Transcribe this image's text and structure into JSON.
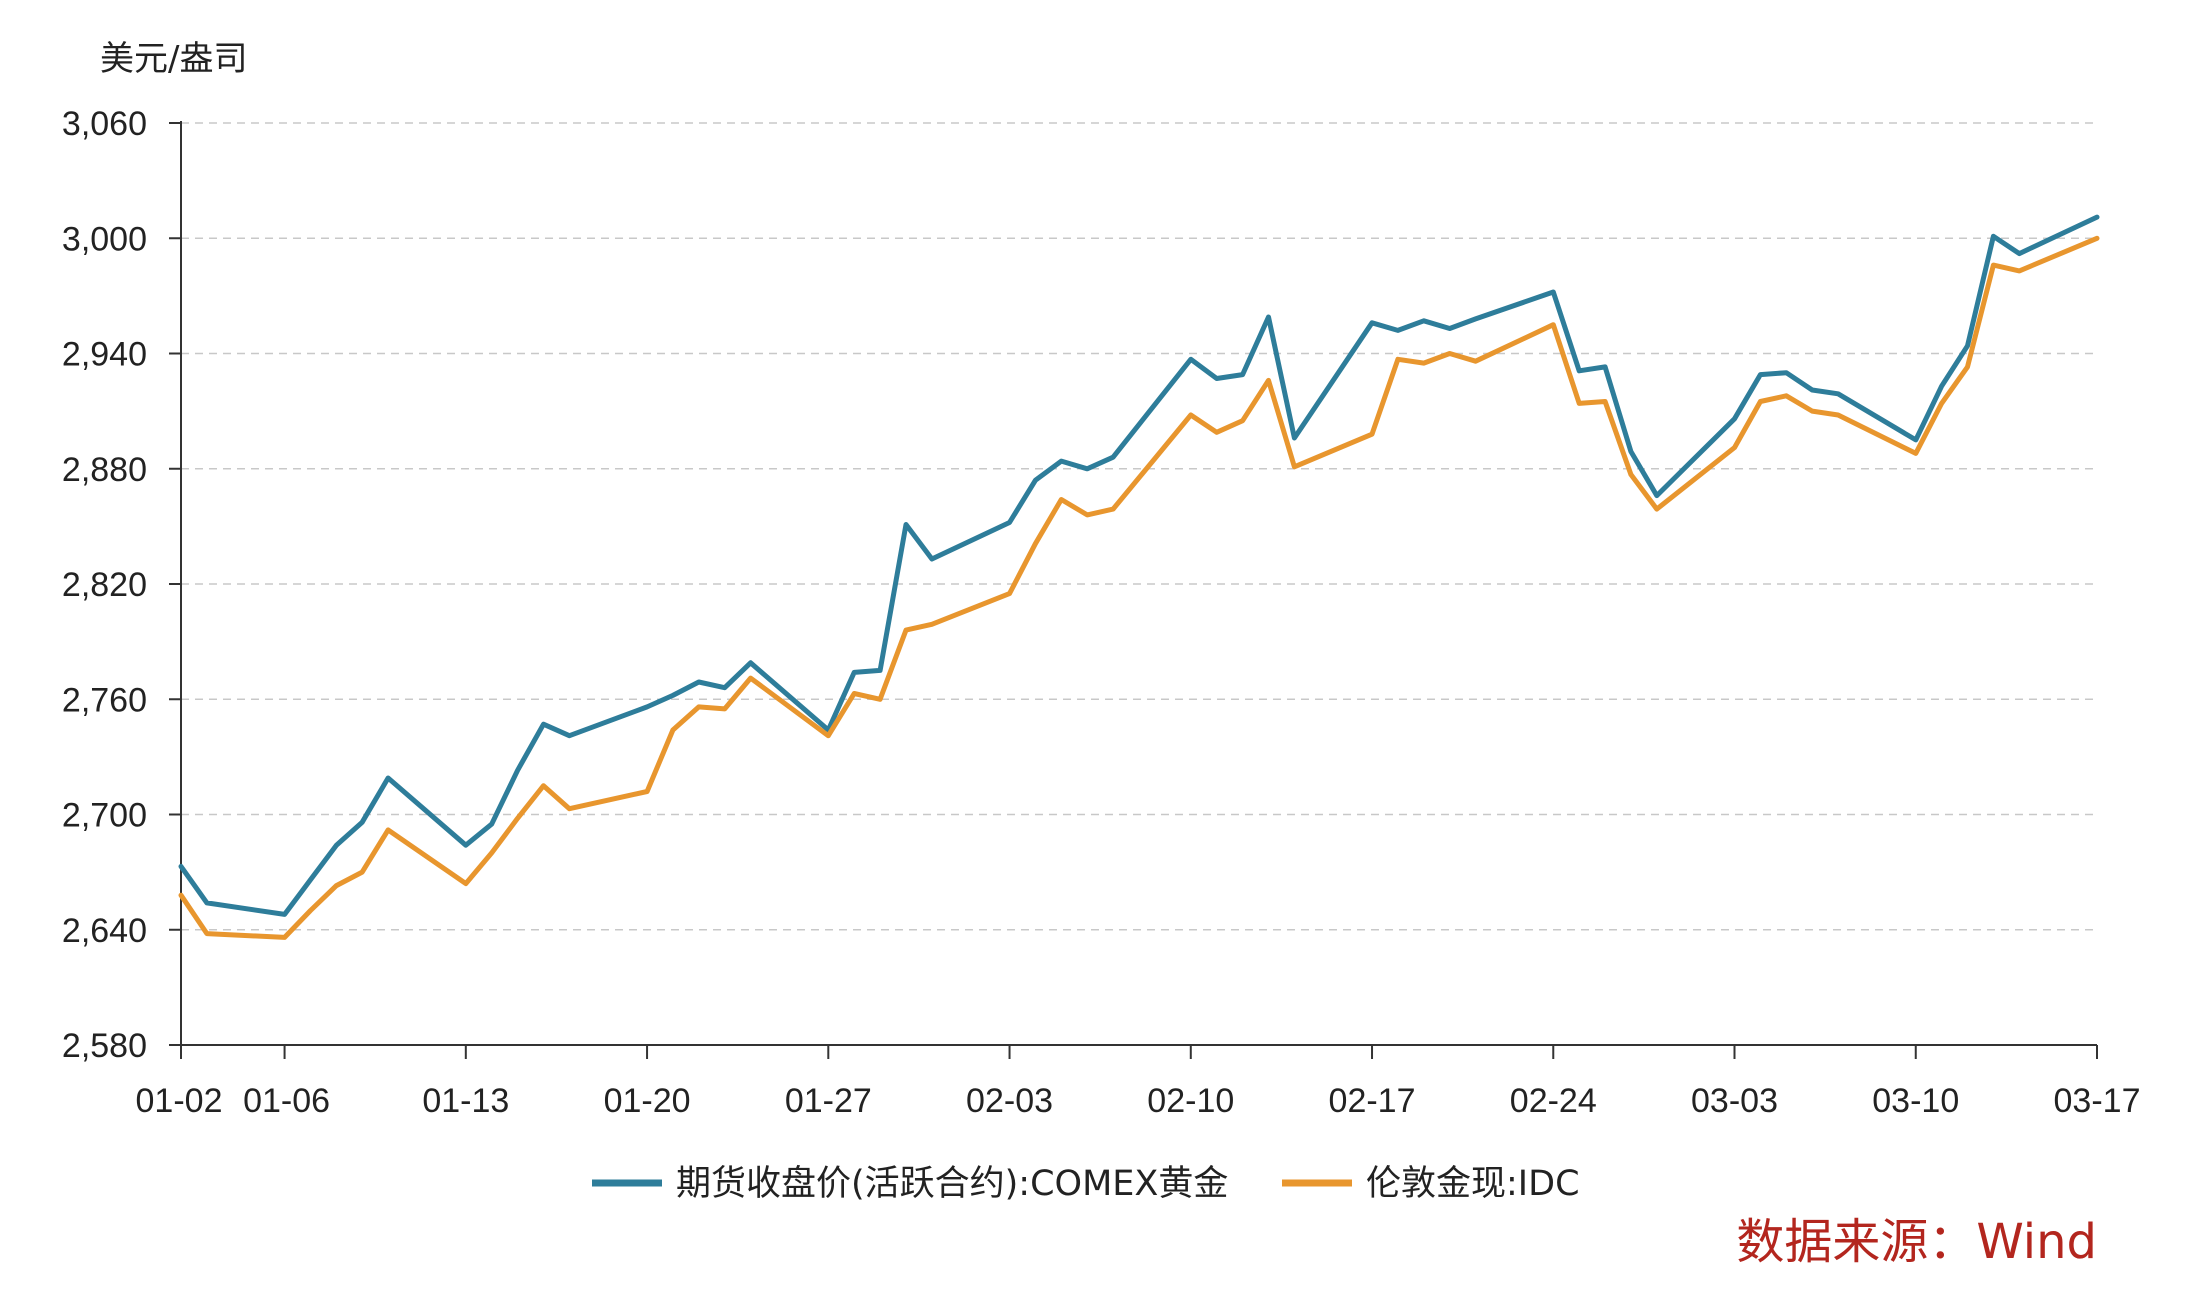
{
  "chart_data": {
    "type": "line",
    "ylabel": "美元/盎司",
    "ylim": [
      2580,
      3060
    ],
    "y_ticks": [
      "2,580",
      "2,640",
      "2,700",
      "2,760",
      "2,820",
      "2,880",
      "2,940",
      "3,000",
      "3,060"
    ],
    "y_tick_values": [
      2580,
      2640,
      2700,
      2760,
      2820,
      2880,
      2940,
      3000,
      3060
    ],
    "x_ticks": [
      "01-02",
      "01-06",
      "01-13",
      "01-20",
      "01-27",
      "02-03",
      "02-10",
      "02-17",
      "02-24",
      "03-03",
      "03-10",
      "03-17"
    ],
    "x_tick_index": [
      0,
      4,
      11,
      18,
      25,
      32,
      39,
      46,
      53,
      60,
      67,
      74
    ],
    "grid": "horizontal-dashed",
    "legend": "bottom-center",
    "x": [
      0,
      1,
      4,
      5,
      6,
      7,
      8,
      11,
      12,
      13,
      14,
      15,
      18,
      19,
      20,
      21,
      22,
      25,
      26,
      27,
      28,
      29,
      32,
      33,
      34,
      35,
      36,
      39,
      40,
      41,
      42,
      43,
      46,
      47,
      48,
      49,
      50,
      53,
      54,
      55,
      56,
      57,
      60,
      61,
      62,
      63,
      64,
      67,
      68,
      69,
      70,
      71,
      74
    ],
    "dates": [
      "01-02",
      "01-03",
      "01-06",
      "01-07",
      "01-08",
      "01-09",
      "01-10",
      "01-13",
      "01-14",
      "01-15",
      "01-16",
      "01-17",
      "01-20",
      "01-21",
      "01-22",
      "01-23",
      "01-24",
      "01-27",
      "01-28",
      "01-29",
      "01-30",
      "01-31",
      "02-03",
      "02-04",
      "02-05",
      "02-06",
      "02-07",
      "02-10",
      "02-11",
      "02-12",
      "02-13",
      "02-14",
      "02-17",
      "02-18",
      "02-19",
      "02-20",
      "02-21",
      "02-24",
      "02-25",
      "02-26",
      "02-27",
      "02-28",
      "03-03",
      "03-04",
      "03-05",
      "03-06",
      "03-07",
      "03-10",
      "03-11",
      "03-12",
      "03-13",
      "03-14",
      "03-17"
    ],
    "series": [
      {
        "name": "期货收盘价(活跃合约):COMEX黄金",
        "color": "#2e7d9a",
        "values": [
          2673,
          2654,
          2648,
          2666,
          2684,
          2696,
          2719,
          2684,
          2695,
          2723,
          2747,
          2741,
          2756,
          2762,
          2769,
          2766,
          2779,
          2744,
          2774,
          2775,
          2851,
          2833,
          2852,
          2874,
          2884,
          2880,
          2886,
          2937,
          2927,
          2929,
          2959,
          2896,
          2956,
          2952,
          2957,
          2953,
          2958,
          2972,
          2931,
          2933,
          2889,
          2866,
          2906,
          2929,
          2930,
          2921,
          2919,
          2895,
          2923,
          2944,
          3001,
          2992,
          3011
        ]
      },
      {
        "name": "伦敦金现:IDC",
        "color": "#e8962e",
        "values": [
          2658,
          2638,
          2636,
          2650,
          2663,
          2670,
          2692,
          2664,
          2680,
          2698,
          2715,
          2703,
          2712,
          2744,
          2756,
          2755,
          2771,
          2741,
          2763,
          2760,
          2796,
          2799,
          2815,
          2841,
          2864,
          2856,
          2859,
          2908,
          2899,
          2905,
          2926,
          2881,
          2898,
          2937,
          2935,
          2940,
          2936,
          2955,
          2914,
          2915,
          2877,
          2859,
          2891,
          2915,
          2918,
          2910,
          2908,
          2888,
          2914,
          2933,
          2986,
          2983,
          3000
        ]
      }
    ]
  },
  "source": {
    "label": "数据来源：Wind"
  }
}
